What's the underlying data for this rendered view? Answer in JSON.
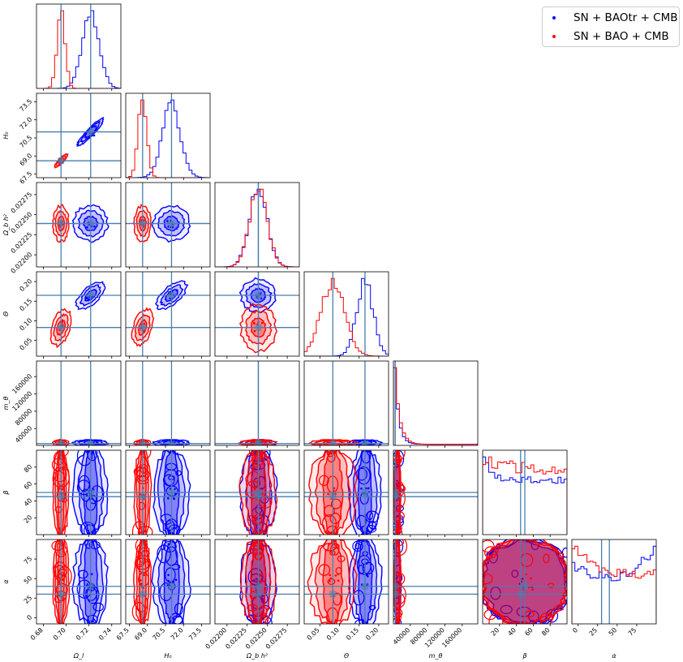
{
  "chart_data": {
    "type": "scatter",
    "title": "",
    "parameters": [
      {
        "label": "Ω_l",
        "range": [
          0.674,
          0.748
        ],
        "ticks": [
          "0.68",
          "0.70",
          "0.72",
          "0.74"
        ],
        "tick_values": [
          0.68,
          0.7,
          0.72,
          0.74
        ],
        "truth": [
          0.6955,
          0.7215
        ]
      },
      {
        "label": "H₀",
        "range": [
          67.2,
          74.2
        ],
        "ticks": [
          "67.5",
          "69.0",
          "70.5",
          "72.0",
          "73.5"
        ],
        "tick_values": [
          67.5,
          69.0,
          70.5,
          72.0,
          73.5
        ],
        "truth": [
          68.6,
          71.0
        ]
      },
      {
        "label": "Ω_b h²",
        "range": [
          0.02185,
          0.0229
        ],
        "ticks": [
          "0.02200",
          "0.02225",
          "0.02250",
          "0.02275"
        ],
        "tick_values": [
          0.022,
          0.02225,
          0.0225,
          0.02275
        ],
        "truth": [
          0.02239,
          0.02239
        ]
      },
      {
        "label": "Θ",
        "range": [
          0.01,
          0.225
        ],
        "ticks": [
          "0.05",
          "0.10",
          "0.15",
          "0.20"
        ],
        "tick_values": [
          0.05,
          0.1,
          0.15,
          0.2
        ],
        "truth": [
          0.083,
          0.165
        ]
      },
      {
        "label": "m_θ",
        "range": [
          1000,
          196000
        ],
        "ticks": [
          "40000",
          "80000",
          "120000",
          "160000"
        ],
        "tick_values": [
          40000,
          80000,
          120000,
          160000
        ],
        "truth": [
          5000,
          5000
        ]
      },
      {
        "label": "β",
        "range": [
          0,
          100
        ],
        "ticks": [
          "20",
          "40",
          "60",
          "80"
        ],
        "tick_values": [
          20,
          40,
          60,
          80
        ],
        "truth": [
          45,
          50
        ]
      },
      {
        "label": "α",
        "range": [
          -8,
          100
        ],
        "ticks": [
          "0",
          "25",
          "50",
          "75"
        ],
        "tick_values": [
          0,
          25,
          50,
          75
        ],
        "truth": [
          30,
          40
        ]
      }
    ],
    "series": [
      {
        "name": "SN + BAOtr + CMB",
        "color": "#0000ff",
        "mean": [
          0.7215,
          71.0,
          0.02239,
          0.165,
          5000,
          50,
          45
        ],
        "sd": [
          0.0075,
          0.75,
          0.00011,
          0.021,
          9000,
          28,
          29
        ]
      },
      {
        "name": "SN + BAO + CMB",
        "color": "#ff0000",
        "mean": [
          0.6955,
          68.6,
          0.02239,
          0.083,
          5000,
          50,
          45
        ],
        "sd": [
          0.0035,
          0.35,
          0.00011,
          0.03,
          9000,
          28,
          29
        ]
      }
    ],
    "correlation": {
      "0-1": 0.97,
      "0-3": 0.8,
      "1-3": 0.8
    },
    "truth_line_color": "#4a7ead",
    "legend_position": "top-right",
    "grid": false
  }
}
